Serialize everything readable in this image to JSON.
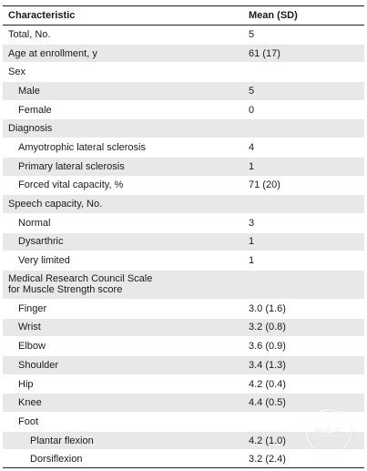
{
  "table": {
    "header": {
      "characteristic": "Characteristic",
      "mean": "Mean (SD)"
    },
    "rows": [
      {
        "label": "Total, No.",
        "value": "5",
        "indent": 0
      },
      {
        "label": "Age at enrollment, y",
        "value": "61 (17)",
        "indent": 0
      },
      {
        "label": "Sex",
        "value": "",
        "indent": 0
      },
      {
        "label": "Male",
        "value": "5",
        "indent": 1
      },
      {
        "label": "Female",
        "value": "0",
        "indent": 1
      },
      {
        "label": "Diagnosis",
        "value": "",
        "indent": 0
      },
      {
        "label": "Amyotrophic lateral sclerosis",
        "value": "4",
        "indent": 1
      },
      {
        "label": "Primary lateral sclerosis",
        "value": "1",
        "indent": 1
      },
      {
        "label": "Forced vital capacity, %",
        "value": "71 (20)",
        "indent": 1
      },
      {
        "label": "Speech capacity, No.",
        "value": "",
        "indent": 0
      },
      {
        "label": "Normal",
        "value": "3",
        "indent": 1
      },
      {
        "label": "Dysarthric",
        "value": "1",
        "indent": 1
      },
      {
        "label": "Very limited",
        "value": "1",
        "indent": 1
      },
      {
        "label_line1": "Medical Research Council Scale",
        "label_line2": "for Muscle Strength score",
        "value": "",
        "indent": 0
      },
      {
        "label": "Finger",
        "value": "3.0 (1.6)",
        "indent": 1
      },
      {
        "label": "Wrist",
        "value": "3.2 (0.8)",
        "indent": 1
      },
      {
        "label": "Elbow",
        "value": "3.6 (0.9)",
        "indent": 1
      },
      {
        "label": "Shoulder",
        "value": "3.4 (1.3)",
        "indent": 1
      },
      {
        "label": "Hip",
        "value": "4.2 (0.4)",
        "indent": 1
      },
      {
        "label": "Knee",
        "value": "4.4 (0.5)",
        "indent": 1
      },
      {
        "label": "Foot",
        "value": "",
        "indent": 1
      },
      {
        "label": "Plantar flexion",
        "value": "4.2 (1.0)",
        "indent": 2
      },
      {
        "label": "Dorsiflexion",
        "value": "3.2 (2.4)",
        "indent": 2
      }
    ]
  },
  "watermark": {
    "text": "脑医汇"
  }
}
